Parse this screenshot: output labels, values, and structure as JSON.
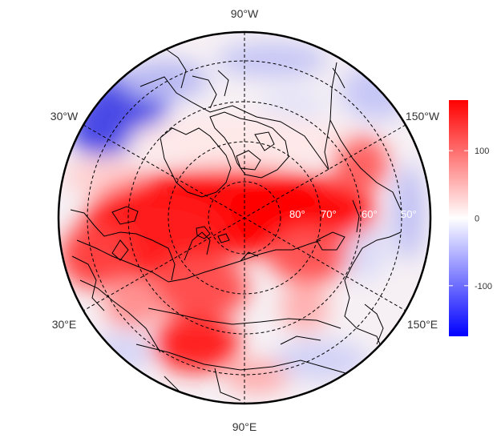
{
  "map": {
    "projection": "north-polar-stereographic",
    "lon_labels": [
      {
        "label": "90°W",
        "lon": -90
      },
      {
        "label": "30°W",
        "lon": -30
      },
      {
        "label": "150°W",
        "lon": -150
      },
      {
        "label": "30°E",
        "lon": 30
      },
      {
        "label": "150°E",
        "lon": 150
      },
      {
        "label": "90°E",
        "lon": 90
      }
    ],
    "lat_labels": [
      {
        "label": "80°",
        "lat": 80
      },
      {
        "label": "70°",
        "lat": 70
      },
      {
        "label": "60°",
        "lat": 60
      },
      {
        "label": "50°",
        "lat": 50
      }
    ],
    "meridians": [
      0,
      60,
      120,
      180,
      240,
      300
    ],
    "parallels": [
      80,
      70,
      60,
      50
    ]
  },
  "colorbar": {
    "range": [
      -175,
      175
    ],
    "ticks": [
      {
        "value": 100,
        "label": "100"
      },
      {
        "value": 0,
        "label": "0"
      },
      {
        "value": -100,
        "label": "-100"
      }
    ],
    "colors": {
      "low": "#0000ff",
      "mid": "#ffffff",
      "high": "#ff0000"
    }
  }
}
